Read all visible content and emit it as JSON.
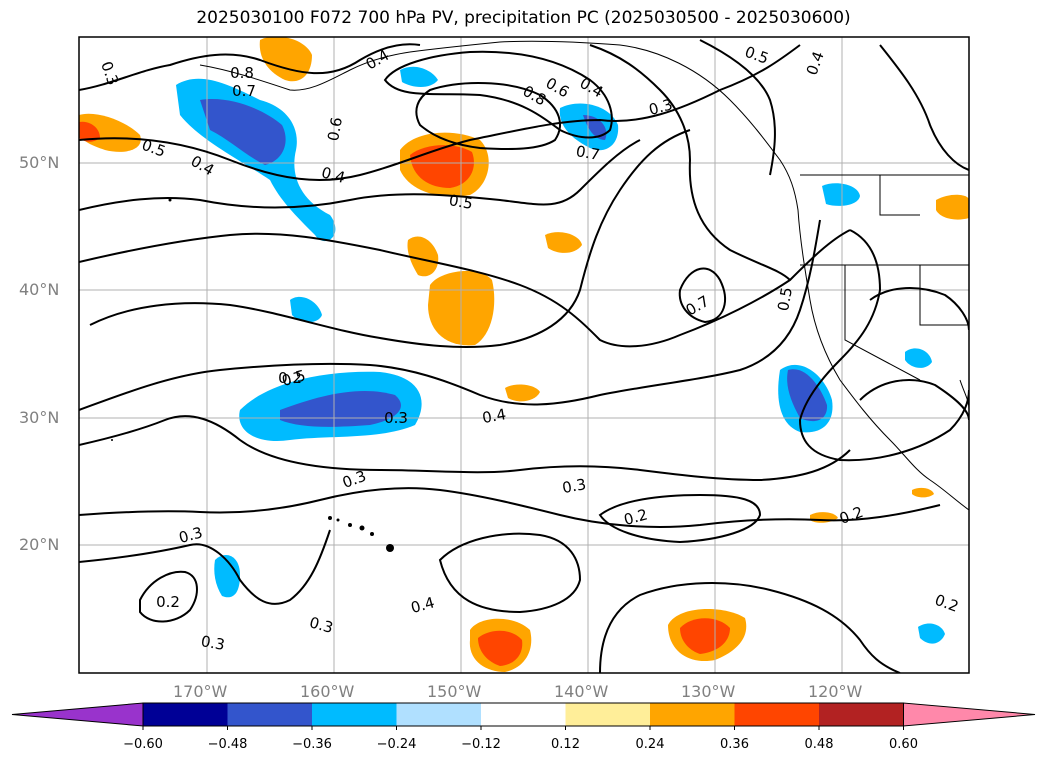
{
  "title": "2025030100 F072 700 hPa PV, precipitation PC (2025030500 - 2025030600)",
  "lat_labels": [
    "50°N",
    "40°N",
    "30°N",
    "20°N"
  ],
  "lon_labels": [
    "170°W",
    "160°W",
    "150°W",
    "140°W",
    "130°W",
    "120°W"
  ],
  "colorbar": {
    "ticks": [
      "−0.60",
      "−0.48",
      "−0.36",
      "−0.24",
      "−0.12",
      "0.12",
      "0.24",
      "0.36",
      "0.48",
      "0.60"
    ],
    "colors": [
      "#9933cc",
      "#000096",
      "#3355cc",
      "#00bbff",
      "#b0e0ff",
      "#ffffff",
      "#ffee99",
      "#ffa500",
      "#ff4500",
      "#b22222",
      "#ff88aa"
    ]
  },
  "contour_labels": [
    "0.3",
    "0.8",
    "0.7",
    "0.5",
    "0.4",
    "0.6",
    "0.8",
    "0.6",
    "0.4",
    "0.3",
    "0.5",
    "0.4",
    "0.5",
    "0.4",
    "0.7",
    "0.4",
    "0.5",
    "0.7",
    "0.5",
    "0.3",
    "0.4",
    "0.3",
    "0.3",
    "0.2",
    "0.3",
    "0.4",
    "0.2",
    "0.2",
    "0.3",
    "0.3",
    "0.2",
    "0.2"
  ],
  "fill_colors": {
    "neg_light": "#00bbff",
    "neg_dark": "#3355cc",
    "pos_light": "#ffa500",
    "pos_dark": "#ff4500",
    "pale_blue": "#b0e0ff",
    "pale_yellow": "#ffee99"
  }
}
